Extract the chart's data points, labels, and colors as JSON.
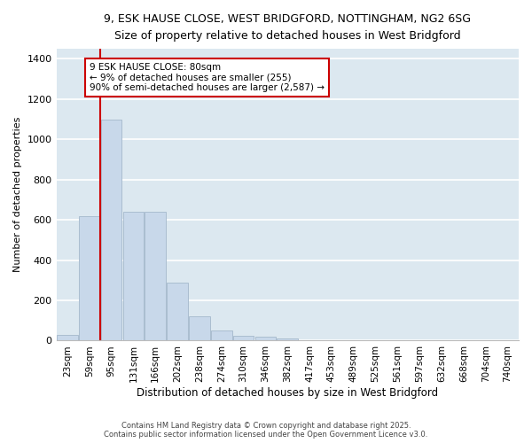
{
  "title_line1": "9, ESK HAUSE CLOSE, WEST BRIDGFORD, NOTTINGHAM, NG2 6SG",
  "title_line2": "Size of property relative to detached houses in West Bridgford",
  "xlabel": "Distribution of detached houses by size in West Bridgford",
  "ylabel": "Number of detached properties",
  "bar_color": "#c8d8ea",
  "bar_edge_color": "#aabdd0",
  "bg_color": "#dce8f0",
  "grid_color": "#ffffff",
  "fig_bg": "#ffffff",
  "categories": [
    "23sqm",
    "59sqm",
    "95sqm",
    "131sqm",
    "166sqm",
    "202sqm",
    "238sqm",
    "274sqm",
    "310sqm",
    "346sqm",
    "382sqm",
    "417sqm",
    "453sqm",
    "489sqm",
    "525sqm",
    "561sqm",
    "597sqm",
    "632sqm",
    "668sqm",
    "704sqm",
    "740sqm"
  ],
  "values": [
    30,
    620,
    1100,
    640,
    640,
    290,
    120,
    50,
    25,
    20,
    10,
    0,
    0,
    0,
    0,
    0,
    0,
    0,
    0,
    0,
    0
  ],
  "vline_x_idx": 2,
  "vline_color": "#cc0000",
  "annotation_text": "9 ESK HAUSE CLOSE: 80sqm\n← 9% of detached houses are smaller (255)\n90% of semi-detached houses are larger (2,587) →",
  "ylim": [
    0,
    1450
  ],
  "yticks": [
    0,
    200,
    400,
    600,
    800,
    1000,
    1200,
    1400
  ],
  "footer1": "Contains HM Land Registry data © Crown copyright and database right 2025.",
  "footer2": "Contains public sector information licensed under the Open Government Licence v3.0."
}
